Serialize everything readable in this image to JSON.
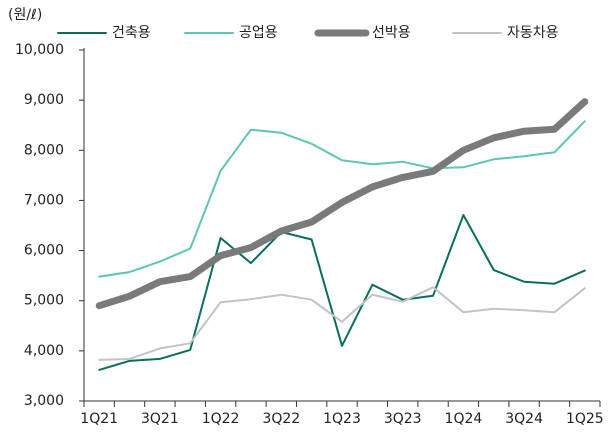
{
  "chart_data": {
    "type": "line",
    "unit_label": "(원/ℓ)",
    "categories": [
      "1Q21",
      null,
      "3Q21",
      null,
      "1Q22",
      null,
      "3Q22",
      null,
      "1Q23",
      null,
      "3Q23",
      null,
      "1Q24",
      null,
      "3Q24",
      null,
      "1Q25"
    ],
    "series": [
      {
        "name": "건축용",
        "color": "#0b6e5c",
        "width": 2,
        "values": [
          3620,
          3800,
          3840,
          4020,
          6250,
          5750,
          6370,
          6220,
          4100,
          5320,
          5020,
          5100,
          6710,
          5610,
          5380,
          5340,
          5600
        ]
      },
      {
        "name": "공업용",
        "color": "#5cc6b2",
        "width": 2,
        "values": [
          5480,
          5570,
          5780,
          6040,
          7590,
          8410,
          8350,
          8130,
          7800,
          7720,
          7770,
          7640,
          7660,
          7820,
          7880,
          7960,
          8580
        ]
      },
      {
        "name": "선박용",
        "color": "#7a7a7a",
        "width": 7,
        "values": [
          4900,
          5090,
          5380,
          5480,
          5900,
          6060,
          6390,
          6570,
          6960,
          7270,
          7460,
          7580,
          8000,
          8250,
          8380,
          8420,
          8970
        ]
      },
      {
        "name": "자동차용",
        "color": "#c3c3c3",
        "width": 2,
        "values": [
          3820,
          3840,
          4050,
          4150,
          4970,
          5030,
          5120,
          5020,
          4580,
          5120,
          4980,
          5270,
          4770,
          4840,
          4810,
          4770,
          5250
        ]
      }
    ],
    "ylim": [
      3000,
      10000
    ],
    "yticks": [
      {
        "value": 3000,
        "label": "3,000"
      },
      {
        "value": 4000,
        "label": "4,000"
      },
      {
        "value": 5000,
        "label": "5,000"
      },
      {
        "value": 6000,
        "label": "6,000"
      },
      {
        "value": 7000,
        "label": "7,000"
      },
      {
        "value": 8000,
        "label": "8,000"
      },
      {
        "value": 9000,
        "label": "9,000"
      },
      {
        "value": 10000,
        "label": "10,000"
      }
    ],
    "legend": "top"
  }
}
